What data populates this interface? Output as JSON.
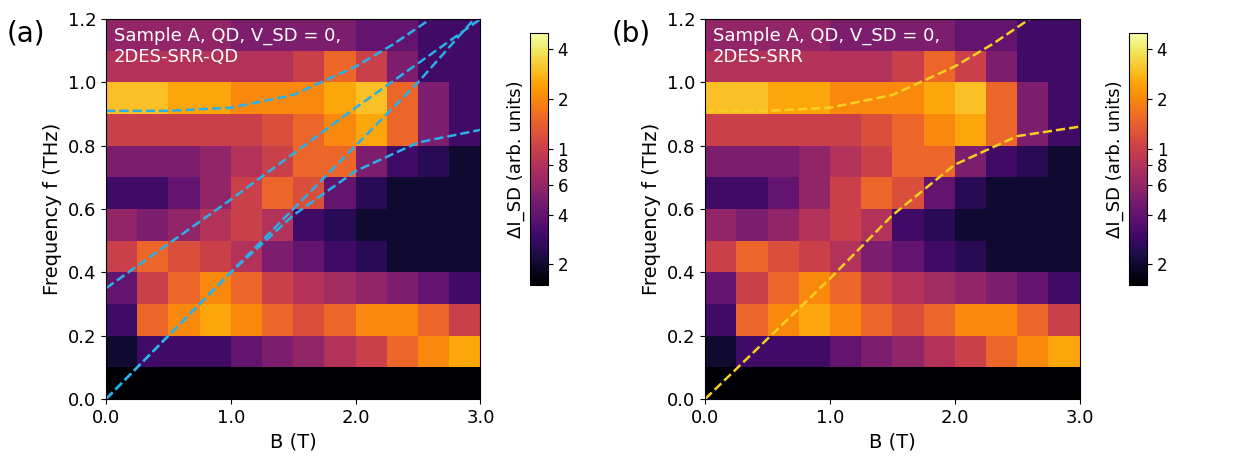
{
  "chart_data": [
    {
      "type": "heatmap",
      "panel": "(a)",
      "annotation": "Sample A, QD, V_SD = 0,\n2DES-SRR-QD",
      "x_label": "B (T)",
      "y_label": "Frequency f (THz)",
      "xlim": [
        0,
        3
      ],
      "ylim": [
        0,
        1.2
      ],
      "xticks": [
        {
          "value": 0,
          "label": "0.0"
        },
        {
          "value": 1,
          "label": "1.0"
        },
        {
          "value": 2,
          "label": "2.0"
        },
        {
          "value": 3,
          "label": "3.0"
        }
      ],
      "yticks": [
        {
          "value": 0,
          "label": "0.0"
        },
        {
          "value": 0.2,
          "label": "0.2"
        },
        {
          "value": 0.4,
          "label": "0.4"
        },
        {
          "value": 0.6,
          "label": "0.6"
        },
        {
          "value": 0.8,
          "label": "0.8"
        },
        {
          "value": 1.0,
          "label": "1.0"
        },
        {
          "value": 1.2,
          "label": "1.2"
        }
      ],
      "x_edges": [
        0,
        0.25,
        0.5,
        0.75,
        1.0,
        1.25,
        1.5,
        1.75,
        2.0,
        2.25,
        2.5,
        2.75,
        3.0
      ],
      "y_edges": [
        0,
        0.1,
        0.2,
        0.3,
        0.4,
        0.5,
        0.6,
        0.7,
        0.8,
        0.9,
        1.0,
        1.1,
        1.2
      ],
      "cells": [
        [
          0.15,
          0.15,
          0.15,
          0.15,
          0.15,
          0.15,
          0.15,
          0.15,
          0.15,
          0.15,
          0.15,
          0.15
        ],
        [
          0.2,
          0.3,
          0.3,
          0.3,
          0.4,
          0.5,
          0.6,
          0.8,
          1.0,
          1.5,
          2,
          2.5
        ],
        [
          0.3,
          1.5,
          2,
          2.5,
          2,
          1.5,
          1.2,
          1.5,
          2,
          2,
          1.5,
          1
        ],
        [
          0.4,
          1,
          1.5,
          2,
          1.5,
          1,
          0.8,
          0.7,
          0.6,
          0.5,
          0.4,
          0.3
        ],
        [
          1,
          1.5,
          1.2,
          1,
          0.8,
          0.5,
          0.4,
          0.3,
          0.25,
          0.2,
          0.2,
          0.2
        ],
        [
          0.6,
          0.5,
          0.6,
          0.8,
          1,
          0.8,
          0.3,
          0.25,
          0.2,
          0.2,
          0.2,
          0.2
        ],
        [
          0.3,
          0.3,
          0.4,
          0.6,
          1,
          1.5,
          1.2,
          0.4,
          0.25,
          0.2,
          0.2,
          0.2
        ],
        [
          0.5,
          0.5,
          0.5,
          0.6,
          0.8,
          1,
          1.5,
          1.5,
          0.5,
          0.3,
          0.25,
          0.2
        ],
        [
          1,
          1,
          1,
          1,
          1,
          1.2,
          1.5,
          2,
          2.5,
          1.5,
          0.5,
          0.3
        ],
        [
          3,
          3,
          2.5,
          2.5,
          2,
          2,
          2,
          2.5,
          3,
          1.5,
          0.5,
          0.3
        ],
        [
          0.8,
          0.8,
          0.8,
          0.8,
          0.8,
          0.8,
          1,
          1.5,
          1,
          0.5,
          0.3,
          0.3
        ],
        [
          0.6,
          0.6,
          0.6,
          0.6,
          0.5,
          0.5,
          0.5,
          0.5,
          0.4,
          0.4,
          0.3,
          0.3
        ]
      ],
      "colorbar_label": "ΔI_SD (arb. units)",
      "colorbar_range": [
        0.15,
        5
      ],
      "colorbar_ticks": [
        {
          "value": 0.2,
          "label": "2"
        },
        {
          "value": 0.4,
          "label": "4"
        },
        {
          "value": 0.6,
          "label": "6"
        },
        {
          "value": 0.8,
          "label": "8"
        },
        1,
        2,
        4
      ],
      "log": true,
      "series": [
        {
          "type": "line",
          "line_style": "dashed",
          "color": "#2ab0e8",
          "x": [
            0,
            0.5,
            1.0,
            1.5,
            2.0,
            2.3,
            2.6
          ],
          "values": [
            0.91,
            0.91,
            0.92,
            0.96,
            1.05,
            1.12,
            1.2
          ]
        },
        {
          "type": "line",
          "line_style": "dashed",
          "color": "#2ab0e8",
          "x": [
            0,
            1.0,
            2.0,
            3.0
          ],
          "values": [
            0.35,
            0.63,
            0.92,
            1.2
          ]
        },
        {
          "type": "line",
          "line_style": "dashed",
          "color": "#2ab0e8",
          "x": [
            0,
            0.5,
            1.0,
            1.5,
            2.0,
            2.5,
            2.95
          ],
          "values": [
            0,
            0.2,
            0.4,
            0.6,
            0.8,
            1.0,
            1.2
          ]
        },
        {
          "type": "line",
          "line_style": "dashed",
          "color": "#2ab0e8",
          "x": [
            0,
            0.5,
            1.0,
            1.5,
            2.0,
            2.5,
            3.0
          ],
          "values": [
            0,
            0.2,
            0.4,
            0.58,
            0.72,
            0.81,
            0.85
          ]
        }
      ]
    },
    {
      "type": "heatmap",
      "panel": "(b)",
      "annotation": "Sample A, QD, V_SD = 0,\n2DES-SRR",
      "x_label": "B (T)",
      "y_label": "Frequency f (THz)",
      "xlim": [
        0,
        3
      ],
      "ylim": [
        0,
        1.2
      ],
      "xticks": [
        {
          "value": 0,
          "label": "0.0"
        },
        {
          "value": 1,
          "label": "1.0"
        },
        {
          "value": 2,
          "label": "2.0"
        },
        {
          "value": 3,
          "label": "3.0"
        }
      ],
      "yticks": [
        {
          "value": 0,
          "label": "0.0"
        },
        {
          "value": 0.2,
          "label": "0.2"
        },
        {
          "value": 0.4,
          "label": "0.4"
        },
        {
          "value": 0.6,
          "label": "0.6"
        },
        {
          "value": 0.8,
          "label": "0.8"
        },
        {
          "value": 1.0,
          "label": "1.0"
        },
        {
          "value": 1.2,
          "label": "1.2"
        }
      ],
      "x_edges": [
        0,
        0.25,
        0.5,
        0.75,
        1.0,
        1.25,
        1.5,
        1.75,
        2.0,
        2.25,
        2.5,
        2.75,
        3.0
      ],
      "y_edges": [
        0,
        0.1,
        0.2,
        0.3,
        0.4,
        0.5,
        0.6,
        0.7,
        0.8,
        0.9,
        1.0,
        1.1,
        1.2
      ],
      "cells": [
        [
          0.15,
          0.15,
          0.15,
          0.15,
          0.15,
          0.15,
          0.15,
          0.15,
          0.15,
          0.15,
          0.15,
          0.15
        ],
        [
          0.2,
          0.3,
          0.3,
          0.3,
          0.4,
          0.5,
          0.6,
          0.8,
          1.0,
          1.5,
          2,
          2.5
        ],
        [
          0.3,
          1.5,
          2,
          2.5,
          2,
          1.5,
          1.2,
          1.5,
          2,
          2,
          1.5,
          1
        ],
        [
          0.4,
          1,
          1.5,
          2,
          1.5,
          1,
          0.8,
          0.7,
          0.6,
          0.5,
          0.4,
          0.3
        ],
        [
          1,
          1.5,
          1.2,
          1,
          0.8,
          0.5,
          0.4,
          0.3,
          0.25,
          0.2,
          0.2,
          0.2
        ],
        [
          0.6,
          0.5,
          0.6,
          0.8,
          1,
          0.8,
          0.3,
          0.25,
          0.2,
          0.2,
          0.2,
          0.2
        ],
        [
          0.3,
          0.3,
          0.4,
          0.6,
          1,
          1.5,
          1.2,
          0.4,
          0.25,
          0.2,
          0.2,
          0.2
        ],
        [
          0.5,
          0.5,
          0.5,
          0.6,
          0.8,
          1,
          1.5,
          1.5,
          0.5,
          0.3,
          0.25,
          0.2
        ],
        [
          1,
          1,
          1,
          1,
          1,
          1.2,
          1.5,
          2,
          2.5,
          1.5,
          0.5,
          0.3
        ],
        [
          3,
          3,
          2.5,
          2.5,
          2,
          2,
          2,
          2.5,
          3,
          1.5,
          0.5,
          0.3
        ],
        [
          0.8,
          0.8,
          0.8,
          0.8,
          0.8,
          0.8,
          1,
          1.5,
          1,
          0.5,
          0.3,
          0.3
        ],
        [
          0.6,
          0.6,
          0.6,
          0.6,
          0.5,
          0.5,
          0.5,
          0.5,
          0.4,
          0.4,
          0.3,
          0.3
        ]
      ],
      "colorbar_label": "ΔI_SD (arb. units)",
      "colorbar_range": [
        0.15,
        5
      ],
      "colorbar_ticks": [
        {
          "value": 0.2,
          "label": "2"
        },
        {
          "value": 0.4,
          "label": "4"
        },
        {
          "value": 0.6,
          "label": "6"
        },
        {
          "value": 0.8,
          "label": "8"
        },
        1,
        2,
        4
      ],
      "log": true,
      "series": [
        {
          "type": "line",
          "line_style": "dashed",
          "color": "#f5d020",
          "x": [
            0,
            0.5,
            1.0,
            1.5,
            2.0,
            2.3,
            2.6
          ],
          "values": [
            0.91,
            0.91,
            0.92,
            0.96,
            1.05,
            1.12,
            1.2
          ]
        },
        {
          "type": "line",
          "line_style": "dashed",
          "color": "#f5d020",
          "x": [
            0,
            0.5,
            1.0,
            1.5,
            2.0,
            2.5,
            3.0
          ],
          "values": [
            0,
            0.19,
            0.38,
            0.58,
            0.74,
            0.83,
            0.86
          ]
        }
      ]
    }
  ]
}
